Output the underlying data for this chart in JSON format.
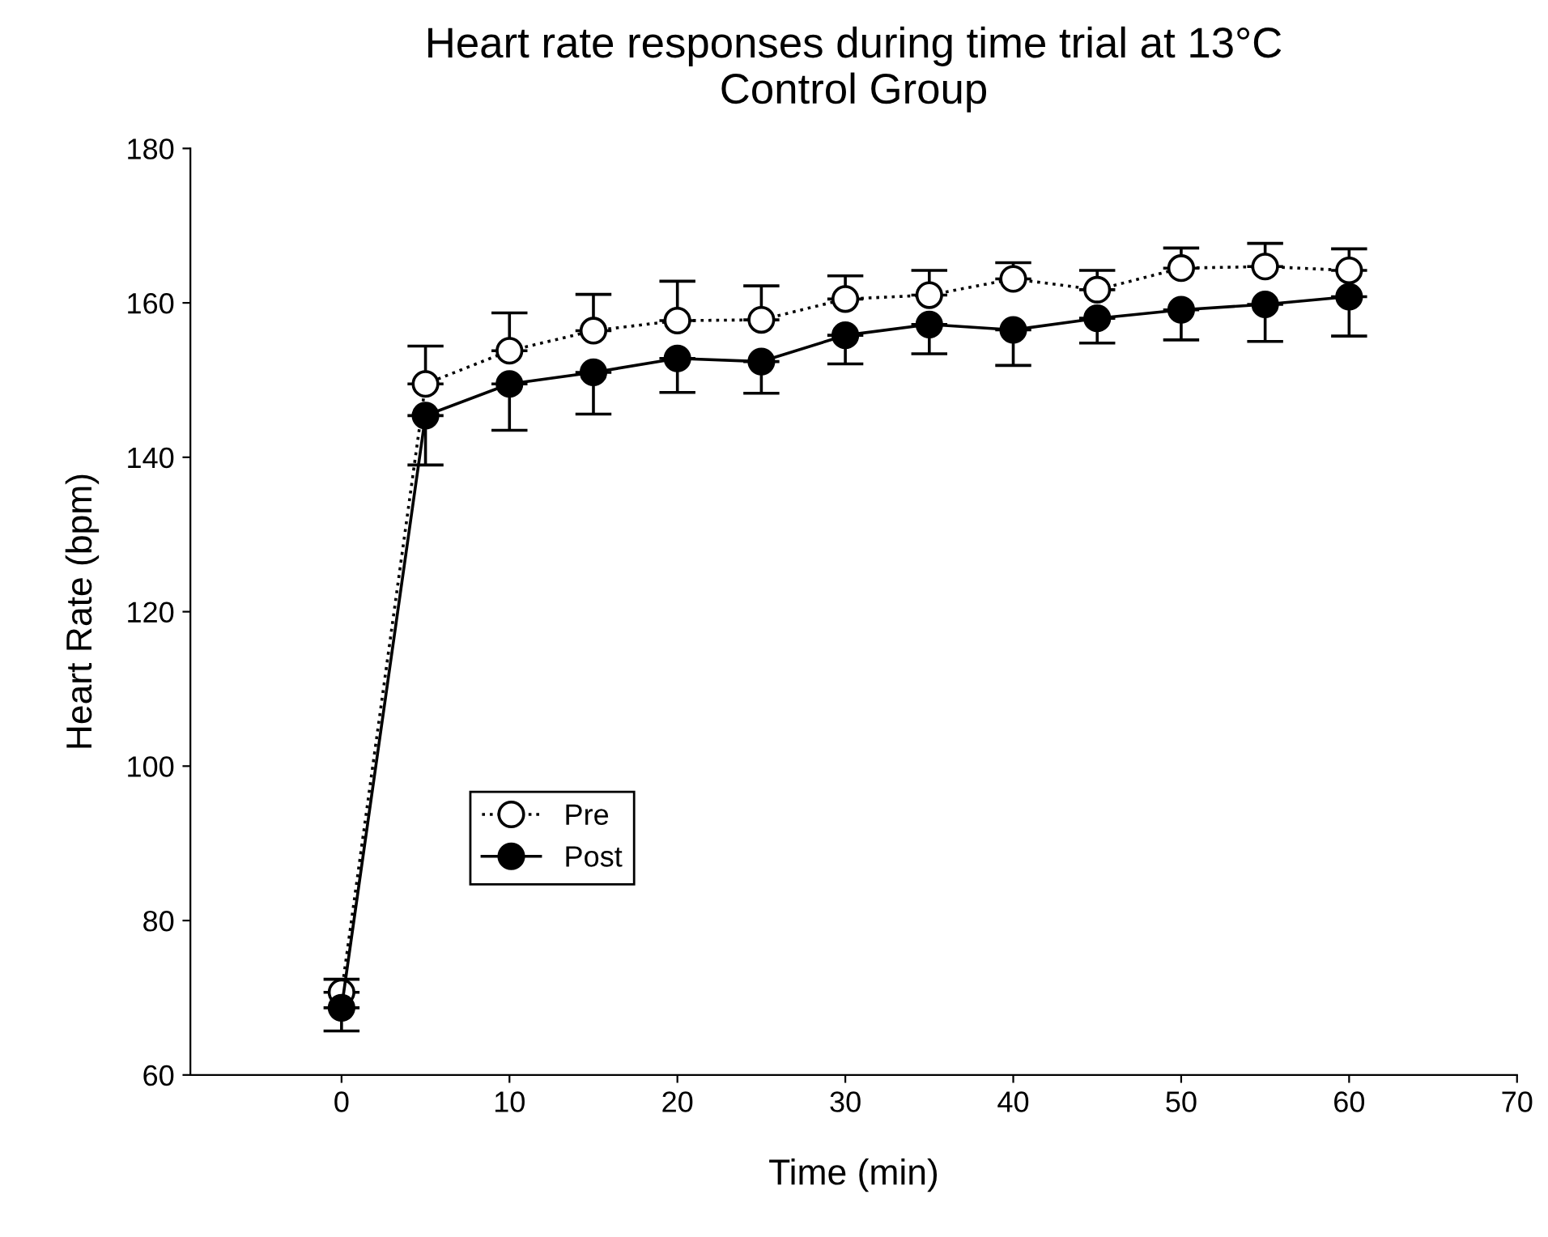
{
  "chart_data": {
    "type": "line",
    "title": "Heart rate responses during time trial at 13°C\nControl Group",
    "xlabel": "Time (min)",
    "ylabel": "Heart Rate (bpm)",
    "x": [
      0,
      5,
      10,
      15,
      20,
      25,
      30,
      35,
      40,
      45,
      50,
      55,
      60
    ],
    "series": [
      {
        "name": "Pre",
        "color": "#000000",
        "marker": "circle",
        "line_style": "dotted",
        "values": [
          70.7,
          149.5,
          153.8,
          156.4,
          157.7,
          157.8,
          160.5,
          161.0,
          163.1,
          161.7,
          164.5,
          164.7,
          164.2
        ],
        "errors": [
          [
            70.7,
            72.4
          ],
          [
            149.5,
            154.4
          ],
          [
            153.8,
            158.7
          ],
          [
            156.4,
            161.1
          ],
          [
            157.7,
            162.8
          ],
          [
            157.8,
            162.2
          ],
          [
            160.5,
            163.5
          ],
          [
            161.0,
            164.2
          ],
          [
            163.1,
            165.2
          ],
          [
            161.7,
            164.2
          ],
          [
            164.5,
            167.1
          ],
          [
            164.7,
            167.7
          ],
          [
            164.2,
            167.0
          ]
        ]
      },
      {
        "name": "Post",
        "color": "#000000",
        "marker": "circle",
        "line_style": "solid",
        "values": [
          68.7,
          145.4,
          149.5,
          151.0,
          152.8,
          152.4,
          155.8,
          157.2,
          156.5,
          158.0,
          159.1,
          159.8,
          160.8
        ],
        "errors": [
          [
            65.7,
            68.7
          ],
          [
            139.0,
            145.4
          ],
          [
            143.5,
            149.5
          ],
          [
            145.6,
            151.0
          ],
          [
            148.4,
            152.8
          ],
          [
            148.3,
            152.4
          ],
          [
            152.1,
            155.8
          ],
          [
            153.4,
            157.2
          ],
          [
            151.9,
            156.5
          ],
          [
            154.8,
            158.0
          ],
          [
            155.2,
            159.1
          ],
          [
            155.0,
            159.8
          ],
          [
            155.7,
            160.8
          ]
        ]
      }
    ],
    "xlim": [
      -9,
      70
    ],
    "xticks": [
      0,
      10,
      20,
      30,
      40,
      50,
      60,
      70
    ],
    "ylim": [
      60,
      180
    ],
    "yticks": [
      60,
      80,
      100,
      120,
      140,
      160,
      180
    ],
    "grid": false,
    "legend": "lower left"
  }
}
